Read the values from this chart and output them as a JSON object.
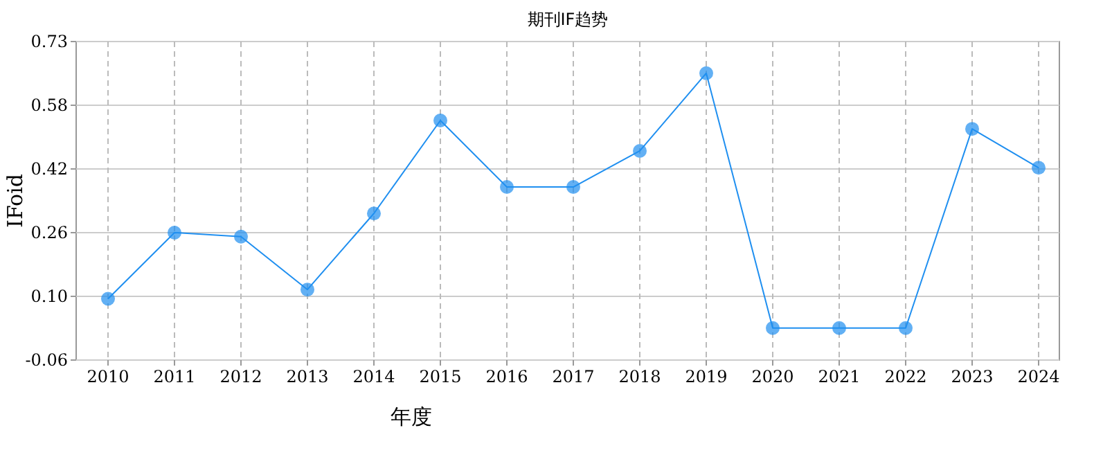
{
  "chart_data": {
    "type": "line",
    "title": "期刊IF趋势",
    "xlabel": "年度",
    "ylabel": "IFoid",
    "categories": [
      "2010",
      "2011",
      "2012",
      "2013",
      "2014",
      "2015",
      "2016",
      "2017",
      "2018",
      "2019",
      "2020",
      "2021",
      "2022",
      "2023",
      "2024"
    ],
    "series": [
      {
        "color": "#1f8ff0",
        "values": [
          0.093,
          0.258,
          0.248,
          0.116,
          0.306,
          0.538,
          0.372,
          0.372,
          0.462,
          0.656,
          0.02,
          0.02,
          0.02,
          0.517,
          0.42
        ]
      }
    ],
    "ylim": [
      -0.06,
      0.735
    ],
    "yticks": [
      {
        "value": -0.06,
        "label": "-0.06"
      },
      {
        "value": 0.099,
        "label": "0.10"
      },
      {
        "value": 0.258,
        "label": "0.26"
      },
      {
        "value": 0.417,
        "label": "0.42"
      },
      {
        "value": 0.576,
        "label": "0.58"
      },
      {
        "value": 0.735,
        "label": "0.73"
      }
    ],
    "grid": true,
    "marker": "circle"
  }
}
